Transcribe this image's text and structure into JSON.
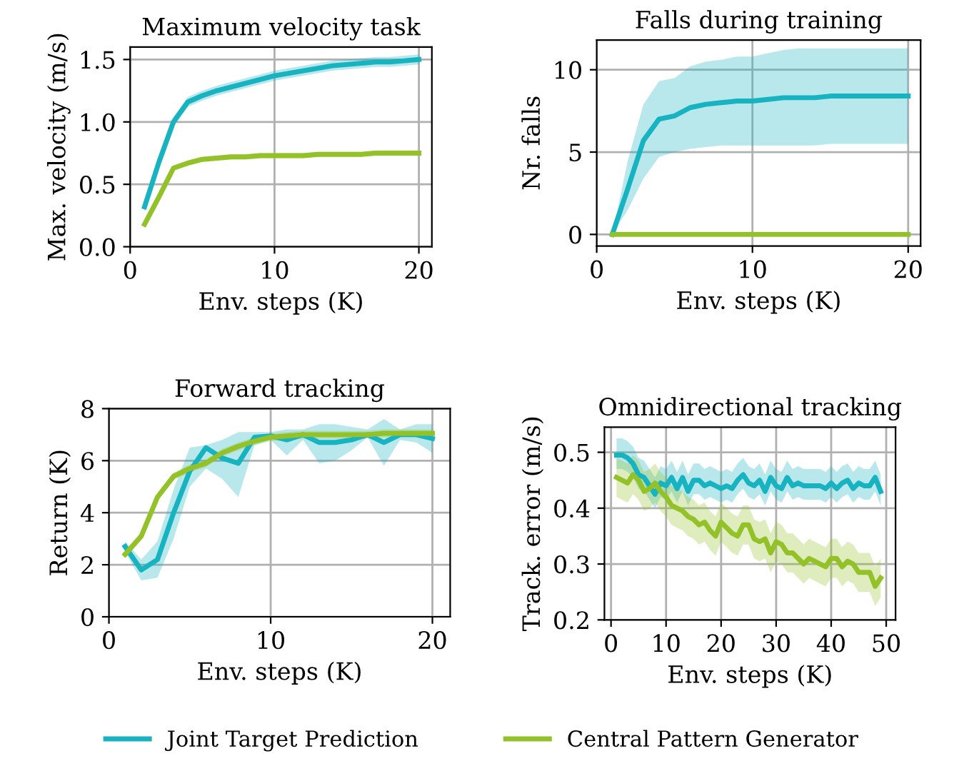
{
  "chart_data": [
    {
      "type": "line",
      "title": "Maximum velocity task",
      "xlabel": "Env. steps (K)",
      "ylabel": "Max. velocity (m/s)",
      "legend": "bottom",
      "grid": true,
      "xlim": [
        0,
        20.9
      ],
      "xticks": [
        0,
        10,
        20
      ],
      "ylim": [
        0,
        1.6
      ],
      "yticks": [
        {
          "value": 0,
          "label": "0.0"
        },
        {
          "value": 0.5,
          "label": "0.5"
        },
        {
          "value": 1,
          "label": "1.0"
        },
        {
          "value": 1.5,
          "label": "1.5"
        }
      ],
      "x": [
        1,
        2,
        3,
        4,
        5,
        6,
        7,
        8,
        9,
        10,
        11,
        12,
        13,
        14,
        15,
        16,
        17,
        18,
        19,
        20
      ],
      "series": [
        {
          "name": "Joint Target Prediction",
          "color": "#17b3c1",
          "values": [
            0.32,
            0.68,
            1.0,
            1.16,
            1.21,
            1.25,
            1.28,
            1.31,
            1.34,
            1.37,
            1.39,
            1.41,
            1.43,
            1.45,
            1.46,
            1.47,
            1.48,
            1.48,
            1.49,
            1.5
          ],
          "upper": [
            0.36,
            0.72,
            1.04,
            1.2,
            1.25,
            1.29,
            1.32,
            1.35,
            1.38,
            1.41,
            1.43,
            1.45,
            1.47,
            1.49,
            1.5,
            1.51,
            1.52,
            1.52,
            1.53,
            1.54
          ],
          "lower": [
            0.28,
            0.64,
            0.96,
            1.12,
            1.17,
            1.21,
            1.24,
            1.27,
            1.3,
            1.33,
            1.35,
            1.37,
            1.39,
            1.41,
            1.42,
            1.43,
            1.44,
            1.44,
            1.45,
            1.46
          ]
        },
        {
          "name": "Central Pattern Generator",
          "color": "#93c128",
          "values": [
            0.18,
            0.4,
            0.63,
            0.67,
            0.7,
            0.71,
            0.72,
            0.72,
            0.73,
            0.73,
            0.73,
            0.73,
            0.74,
            0.74,
            0.74,
            0.74,
            0.75,
            0.75,
            0.75,
            0.75
          ],
          "upper": [
            0.2,
            0.42,
            0.65,
            0.69,
            0.72,
            0.73,
            0.74,
            0.74,
            0.75,
            0.75,
            0.75,
            0.75,
            0.76,
            0.76,
            0.76,
            0.76,
            0.77,
            0.77,
            0.77,
            0.77
          ],
          "lower": [
            0.16,
            0.38,
            0.61,
            0.65,
            0.68,
            0.69,
            0.7,
            0.7,
            0.71,
            0.71,
            0.71,
            0.71,
            0.72,
            0.72,
            0.72,
            0.72,
            0.73,
            0.73,
            0.73,
            0.73
          ]
        }
      ]
    },
    {
      "type": "line",
      "title": "Falls during training",
      "xlabel": "Env. steps (K)",
      "ylabel": "Nr. falls",
      "grid": true,
      "xlim": [
        0,
        20.8
      ],
      "xticks": [
        0,
        10,
        20
      ],
      "ylim": [
        -0.7,
        11.8
      ],
      "yticks": [
        0,
        5,
        10
      ],
      "x": [
        1,
        2,
        3,
        4,
        5,
        6,
        7,
        8,
        9,
        10,
        11,
        12,
        13,
        14,
        15,
        16,
        17,
        18,
        19,
        20
      ],
      "series": [
        {
          "color": "#17b3c1",
          "values": [
            0,
            2.8,
            5.7,
            7.0,
            7.2,
            7.7,
            7.9,
            8.0,
            8.1,
            8.1,
            8.2,
            8.3,
            8.3,
            8.3,
            8.4,
            8.4,
            8.4,
            8.4,
            8.4,
            8.4
          ],
          "upper": [
            0,
            4.5,
            7.9,
            9.3,
            9.5,
            10.2,
            10.5,
            10.6,
            10.8,
            10.8,
            11.0,
            11.2,
            11.3,
            11.3,
            11.3,
            11.3,
            11.3,
            11.3,
            11.3,
            11.3
          ],
          "lower": [
            0,
            1.5,
            3.4,
            4.7,
            5.0,
            5.2,
            5.3,
            5.4,
            5.4,
            5.4,
            5.4,
            5.4,
            5.4,
            5.4,
            5.5,
            5.5,
            5.5,
            5.5,
            5.5,
            5.5
          ]
        },
        {
          "color": "#93c128",
          "values": [
            0,
            0,
            0,
            0,
            0,
            0,
            0,
            0,
            0,
            0,
            0,
            0,
            0,
            0,
            0,
            0,
            0,
            0,
            0,
            0
          ]
        }
      ]
    },
    {
      "type": "line",
      "title": "Forward tracking",
      "xlabel": "Env. steps (K)",
      "ylabel": "Return (K)",
      "grid": true,
      "xlim": [
        0,
        21.1
      ],
      "xticks": [
        0,
        10,
        20
      ],
      "ylim": [
        0,
        8
      ],
      "yticks": [
        0,
        2,
        4,
        6,
        8
      ],
      "x": [
        1,
        2,
        3,
        4,
        5,
        6,
        7,
        8,
        9,
        10,
        11,
        12,
        13,
        14,
        15,
        16,
        17,
        18,
        19,
        20
      ],
      "series": [
        {
          "color": "#17b3c1",
          "values": [
            2.7,
            1.8,
            2.2,
            4.0,
            5.6,
            6.5,
            6.1,
            5.9,
            6.9,
            6.95,
            6.8,
            7.0,
            6.7,
            6.7,
            6.8,
            7.0,
            6.7,
            7.0,
            7.0,
            6.85
          ],
          "upper": [
            2.9,
            2.2,
            2.9,
            4.9,
            6.5,
            6.6,
            6.8,
            7.1,
            7.1,
            7.1,
            7.2,
            7.2,
            7.4,
            7.4,
            7.3,
            7.2,
            7.6,
            7.2,
            7.4,
            7.4
          ],
          "lower": [
            2.5,
            1.4,
            1.5,
            3.0,
            5.0,
            5.7,
            5.3,
            4.6,
            6.6,
            6.8,
            6.2,
            6.8,
            5.9,
            6.0,
            6.4,
            6.9,
            5.8,
            6.8,
            6.7,
            6.3
          ]
        },
        {
          "color": "#93c128",
          "values": [
            2.4,
            3.1,
            4.6,
            5.4,
            5.7,
            5.9,
            6.3,
            6.55,
            6.75,
            6.9,
            6.95,
            7.0,
            7.0,
            7.0,
            7.0,
            7.0,
            7.05,
            7.05,
            7.05,
            7.05
          ],
          "upper": [
            2.55,
            3.25,
            4.75,
            5.55,
            5.85,
            6.05,
            6.45,
            6.7,
            6.9,
            7.05,
            7.1,
            7.15,
            7.15,
            7.15,
            7.15,
            7.15,
            7.2,
            7.2,
            7.2,
            7.2
          ],
          "lower": [
            2.25,
            2.95,
            4.45,
            5.25,
            5.55,
            5.75,
            6.15,
            6.4,
            6.6,
            6.75,
            6.8,
            6.85,
            6.85,
            6.85,
            6.85,
            6.85,
            6.9,
            6.9,
            6.9,
            6.9
          ]
        }
      ]
    },
    {
      "type": "line",
      "title": "Omnidirectional tracking",
      "xlabel": "Env. steps (K)",
      "ylabel": "Track. error (m/s)",
      "grid": true,
      "xlim": [
        -1.2,
        51.7
      ],
      "xticks": [
        0,
        10,
        20,
        30,
        40,
        50
      ],
      "ylim": [
        0.2,
        0.545
      ],
      "yticks": [
        0.2,
        0.3,
        0.4,
        0.5
      ],
      "x": [
        1,
        2,
        3,
        4,
        5,
        6,
        7,
        8,
        9,
        10,
        11,
        12,
        13,
        14,
        15,
        16,
        17,
        18,
        19,
        20,
        21,
        22,
        23,
        24,
        25,
        26,
        27,
        28,
        29,
        30,
        31,
        32,
        33,
        34,
        35,
        36,
        37,
        38,
        39,
        40,
        41,
        42,
        43,
        44,
        45,
        46,
        47,
        48,
        49
      ],
      "series": [
        {
          "color": "#17b3c1",
          "values": [
            0.495,
            0.495,
            0.49,
            0.48,
            0.46,
            0.455,
            0.44,
            0.425,
            0.445,
            0.44,
            0.455,
            0.435,
            0.455,
            0.43,
            0.45,
            0.45,
            0.44,
            0.445,
            0.44,
            0.435,
            0.44,
            0.435,
            0.45,
            0.46,
            0.445,
            0.44,
            0.45,
            0.43,
            0.455,
            0.44,
            0.435,
            0.455,
            0.44,
            0.445,
            0.44,
            0.44,
            0.44,
            0.44,
            0.435,
            0.445,
            0.435,
            0.445,
            0.45,
            0.435,
            0.445,
            0.44,
            0.44,
            0.455,
            0.43
          ],
          "upper": [
            0.525,
            0.525,
            0.52,
            0.51,
            0.49,
            0.485,
            0.47,
            0.455,
            0.475,
            0.47,
            0.485,
            0.465,
            0.485,
            0.46,
            0.48,
            0.48,
            0.47,
            0.475,
            0.47,
            0.465,
            0.47,
            0.465,
            0.48,
            0.49,
            0.475,
            0.47,
            0.48,
            0.46,
            0.485,
            0.47,
            0.465,
            0.485,
            0.47,
            0.475,
            0.47,
            0.47,
            0.47,
            0.47,
            0.465,
            0.475,
            0.465,
            0.475,
            0.48,
            0.465,
            0.475,
            0.47,
            0.47,
            0.485,
            0.46
          ],
          "lower": [
            0.47,
            0.47,
            0.465,
            0.455,
            0.435,
            0.43,
            0.415,
            0.4,
            0.42,
            0.415,
            0.43,
            0.41,
            0.43,
            0.405,
            0.425,
            0.425,
            0.415,
            0.42,
            0.415,
            0.41,
            0.415,
            0.41,
            0.425,
            0.435,
            0.42,
            0.415,
            0.425,
            0.405,
            0.43,
            0.415,
            0.41,
            0.43,
            0.415,
            0.42,
            0.415,
            0.415,
            0.415,
            0.415,
            0.41,
            0.42,
            0.41,
            0.42,
            0.425,
            0.41,
            0.42,
            0.415,
            0.415,
            0.43,
            0.405
          ]
        },
        {
          "color": "#93c128",
          "values": [
            0.455,
            0.45,
            0.445,
            0.46,
            0.45,
            0.43,
            0.435,
            0.445,
            0.43,
            0.42,
            0.405,
            0.4,
            0.395,
            0.385,
            0.38,
            0.37,
            0.375,
            0.36,
            0.35,
            0.375,
            0.365,
            0.355,
            0.35,
            0.37,
            0.37,
            0.345,
            0.34,
            0.345,
            0.32,
            0.34,
            0.335,
            0.32,
            0.32,
            0.31,
            0.3,
            0.31,
            0.305,
            0.3,
            0.295,
            0.31,
            0.31,
            0.295,
            0.305,
            0.3,
            0.285,
            0.285,
            0.285,
            0.26,
            0.275
          ],
          "upper": [
            0.49,
            0.485,
            0.48,
            0.495,
            0.485,
            0.465,
            0.47,
            0.48,
            0.465,
            0.455,
            0.44,
            0.435,
            0.43,
            0.42,
            0.415,
            0.405,
            0.41,
            0.395,
            0.385,
            0.41,
            0.4,
            0.39,
            0.385,
            0.405,
            0.405,
            0.38,
            0.375,
            0.38,
            0.355,
            0.375,
            0.37,
            0.355,
            0.355,
            0.345,
            0.335,
            0.345,
            0.34,
            0.335,
            0.33,
            0.345,
            0.345,
            0.33,
            0.34,
            0.335,
            0.32,
            0.32,
            0.32,
            0.295,
            0.31
          ],
          "lower": [
            0.42,
            0.415,
            0.41,
            0.425,
            0.415,
            0.395,
            0.4,
            0.41,
            0.395,
            0.385,
            0.37,
            0.365,
            0.36,
            0.35,
            0.345,
            0.335,
            0.34,
            0.325,
            0.315,
            0.34,
            0.33,
            0.32,
            0.315,
            0.335,
            0.335,
            0.31,
            0.305,
            0.31,
            0.285,
            0.305,
            0.3,
            0.285,
            0.285,
            0.275,
            0.265,
            0.275,
            0.27,
            0.265,
            0.26,
            0.275,
            0.275,
            0.26,
            0.27,
            0.265,
            0.25,
            0.25,
            0.25,
            0.225,
            0.24
          ]
        }
      ]
    }
  ]
}
